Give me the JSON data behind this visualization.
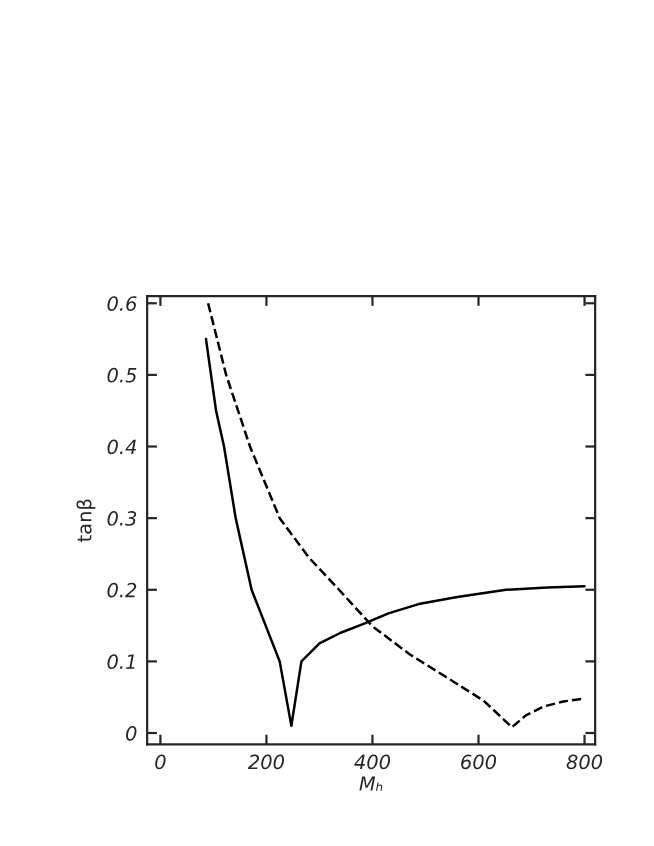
{
  "chart_data": {
    "type": "line",
    "xlabel": "Mₕ",
    "ylabel": "tanβ",
    "xlim": [
      -25,
      820
    ],
    "ylim": [
      -0.016,
      0.61
    ],
    "xticks": [
      0,
      200,
      400,
      600,
      800
    ],
    "yticks": [
      {
        "value": 0,
        "label": "0"
      },
      0.1,
      0.2,
      0.3,
      0.4,
      0.5,
      0.6
    ],
    "grid": false,
    "legend": false,
    "series": [
      {
        "color": "#000000",
        "line_style": "solid",
        "x": [
          86,
          105,
          120,
          142,
          172,
          225,
          247,
          266,
          300,
          340,
          382,
          430,
          487,
          560,
          652,
          730,
          800
        ],
        "values": [
          0.55,
          0.45,
          0.4,
          0.3,
          0.2,
          0.1,
          0.01,
          0.1,
          0.125,
          0.14,
          0.152,
          0.167,
          0.18,
          0.19,
          0.2,
          0.203,
          0.205
        ]
      },
      {
        "color": "#000000",
        "line_style": "dashed",
        "x": [
          90,
          124,
          169,
          225,
          280,
          337,
          400,
          470,
          550,
          610,
          663,
          690,
          723,
          760,
          800
        ],
        "values": [
          0.6,
          0.5,
          0.4,
          0.3,
          0.245,
          0.2,
          0.149,
          0.11,
          0.073,
          0.045,
          0.008,
          0.025,
          0.037,
          0.044,
          0.048
        ]
      }
    ]
  }
}
